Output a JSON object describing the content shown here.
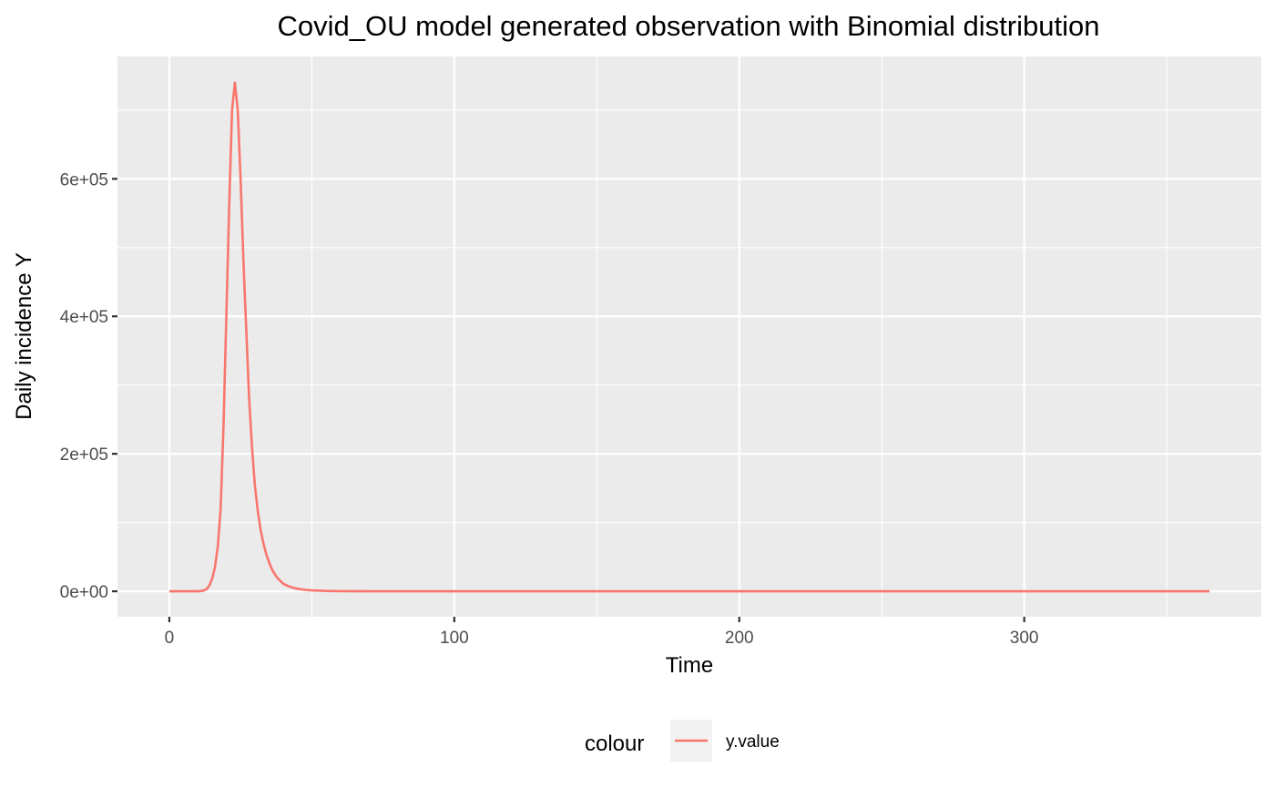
{
  "chart_data": {
    "type": "line",
    "title": "Covid_OU model generated observation with Binomial distribution",
    "xlabel": "Time",
    "ylabel": "Daily incidence Y",
    "xlim": [
      -18.2,
      383.2
    ],
    "ylim": [
      -37000,
      778000
    ],
    "x_ticks": [
      0,
      100,
      200,
      300
    ],
    "x_tick_labels": [
      "0",
      "100",
      "200",
      "300"
    ],
    "y_ticks": [
      0,
      200000,
      400000,
      600000
    ],
    "y_tick_labels": [
      "0e+00",
      "2e+05",
      "4e+05",
      "6e+05"
    ],
    "grid": true,
    "legend": {
      "title": "colour",
      "position": "bottom",
      "entries": [
        "y.value"
      ]
    },
    "series_colors": [
      "#F8766D"
    ],
    "series": [
      {
        "name": "y.value",
        "x": [
          0,
          5,
          10,
          12,
          13,
          14,
          15,
          16,
          17,
          18,
          19,
          20,
          21,
          22,
          23,
          24,
          25,
          26,
          27,
          28,
          29,
          30,
          31,
          32,
          33,
          34,
          35,
          36,
          37,
          38,
          39,
          40,
          42,
          44,
          46,
          48,
          50,
          55,
          60,
          70,
          80,
          100,
          150,
          200,
          250,
          300,
          365
        ],
        "y": [
          0,
          0,
          0,
          1000,
          3000,
          8000,
          18000,
          35000,
          65000,
          120000,
          240000,
          400000,
          560000,
          700000,
          740000,
          700000,
          600000,
          480000,
          380000,
          280000,
          210000,
          155000,
          118000,
          90000,
          70000,
          54000,
          42000,
          32000,
          25000,
          19000,
          15000,
          11000,
          7000,
          4500,
          3000,
          2000,
          1300,
          500,
          200,
          50,
          10,
          0,
          0,
          0,
          0,
          0,
          0
        ]
      }
    ]
  }
}
